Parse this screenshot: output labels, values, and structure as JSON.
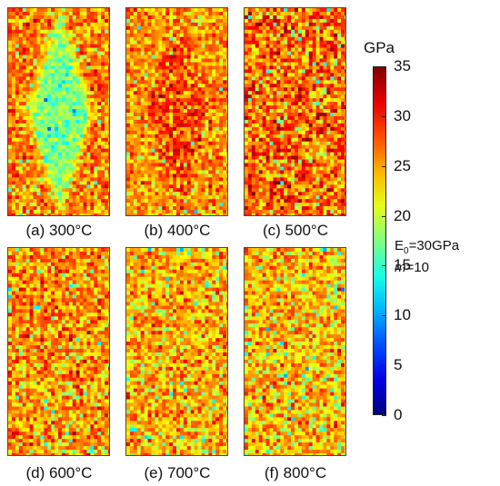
{
  "chart_data": {
    "type": "heatmap",
    "colorbar": {
      "unit": "GPa",
      "min": 0,
      "max": 35,
      "ticks": [
        "0",
        "5",
        "10",
        "15",
        "20",
        "25",
        "30",
        "35"
      ],
      "colormap": "jet"
    },
    "annotations": {
      "e0_label": "E",
      "e0_sub": "0",
      "e0_value": "=30GPa",
      "m_symbol": "m",
      "m_value": "=10"
    },
    "panels": [
      {
        "label": "(a) 300°C",
        "temperature_c": 300,
        "pattern": "diamond",
        "mean_modulus_gpa": 17,
        "edge_modulus_gpa": 26
      },
      {
        "label": "(b) 400°C",
        "temperature_c": 400,
        "pattern": "diamond",
        "mean_modulus_gpa": 28,
        "edge_modulus_gpa": 25
      },
      {
        "label": "(c) 500°C",
        "temperature_c": 500,
        "pattern": "uniform",
        "mean_modulus_gpa": 27,
        "edge_modulus_gpa": 27
      },
      {
        "label": "(d) 600°C",
        "temperature_c": 600,
        "pattern": "uniform",
        "mean_modulus_gpa": 25.5,
        "edge_modulus_gpa": 25.5
      },
      {
        "label": "(e) 700°C",
        "temperature_c": 700,
        "pattern": "uniform",
        "mean_modulus_gpa": 24.5,
        "edge_modulus_gpa": 24.5
      },
      {
        "label": "(f) 800°C",
        "temperature_c": 800,
        "pattern": "uniform",
        "mean_modulus_gpa": 24,
        "edge_modulus_gpa": 24
      }
    ]
  }
}
